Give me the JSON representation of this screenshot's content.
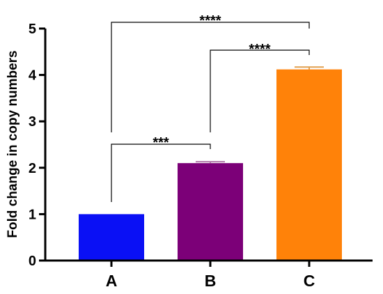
{
  "chart_data": {
    "type": "bar",
    "categories": [
      "A",
      "B",
      "C"
    ],
    "values": [
      1.0,
      2.1,
      4.12
    ],
    "errors": [
      0.0,
      0.03,
      0.05
    ],
    "colors": [
      "#0a10f5",
      "#7c0078",
      "#ff8209"
    ],
    "error_colors": [
      "#0a10f5",
      "#b07aa8",
      "#e0a050"
    ],
    "ylabel": "Fold change in copy numbers",
    "xlabel": "",
    "ylim": [
      0,
      5
    ],
    "yticks": [
      "0",
      "1",
      "2",
      "3",
      "4",
      "5"
    ],
    "grid": false,
    "significance": [
      {
        "from": "A",
        "to": "B",
        "label": "***"
      },
      {
        "from": "B",
        "to": "C",
        "label": "****"
      },
      {
        "from": "A",
        "to": "C",
        "label": "****"
      }
    ]
  }
}
